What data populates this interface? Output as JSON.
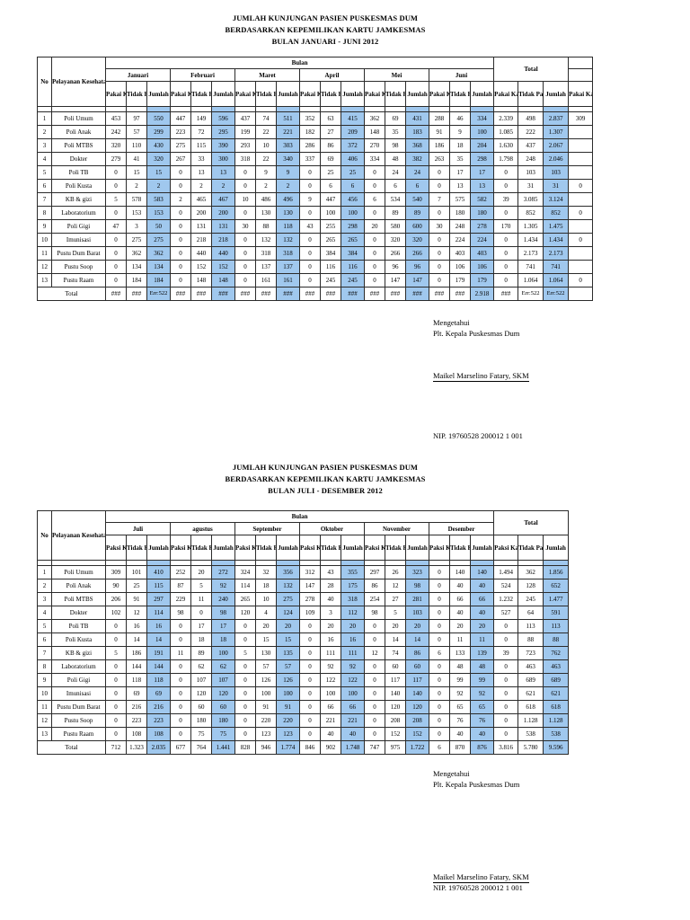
{
  "colors": {
    "highlight": "#A0C8EE",
    "border": "#2b2b2b"
  },
  "doc": {
    "title1": {
      "line1": "JUMLAH KUNJUNGAN PASIEN PUSKESMAS DUM",
      "line2": "BERDASARKAN KEPEMILIKAN KARTU JAMKESMAS",
      "line3": "BULAN JANUARI - JUNI 2012"
    },
    "title2": {
      "line1": "JUMLAH KUNJUNGAN PASIEN PUSKESMAS DUM",
      "line2": "BERDASARKAN KEPEMILIKAN KARTU JAMKESMAS",
      "line3": "BULAN JULI - DESEMBER 2012"
    },
    "sign1": {
      "l1": "Mengetahui",
      "l2": "Plt. Kepala Puskesmas Dum",
      "name": "Maikel Marselino Fatary, SKM",
      "nip": "NIP. 19760528 200012 1 001"
    },
    "sign2": {
      "l1": "Mengetahui",
      "l2": "Plt. Kepala Puskesmas Dum",
      "name": "Maikel Marselino Fatary, SKM",
      "nip": "NIP. 19760528 200012 1 001"
    }
  },
  "tables": [
    {
      "no_label": "No",
      "service_label": "Pelayanan Kesehatan",
      "bulan_label": "Bulan",
      "total_label": "Total",
      "months": [
        "Januari",
        "Februari",
        "Maret",
        "April",
        "Mei",
        "Juni"
      ],
      "sub": [
        "Pakai Kartu",
        "Tidak Pakai",
        "Jumlah"
      ],
      "total_sub": [
        "Pakai Kartu",
        "Tidak Pakai",
        "Jumlah"
      ],
      "trailing_label": "Pakai Kartu",
      "total_row_label": "Total",
      "rows": [
        {
          "no": "1",
          "name": "Poli Umum",
          "cells": [
            "453",
            "97",
            "550",
            "447",
            "149",
            "596",
            "437",
            "74",
            "511",
            "352",
            "63",
            "415",
            "362",
            "69",
            "431",
            "288",
            "46",
            "334",
            "2.339",
            "498",
            "2.837"
          ],
          "trailing": "309"
        },
        {
          "no": "2",
          "name": "Poli Anak",
          "cells": [
            "242",
            "57",
            "299",
            "223",
            "72",
            "295",
            "199",
            "22",
            "221",
            "182",
            "27",
            "209",
            "148",
            "35",
            "183",
            "91",
            "9",
            "100",
            "1.085",
            "222",
            "1.307"
          ],
          "trailing": ""
        },
        {
          "no": "3",
          "name": "Poli MTBS",
          "cells": [
            "320",
            "110",
            "430",
            "275",
            "115",
            "390",
            "293",
            "10",
            "303",
            "286",
            "86",
            "372",
            "270",
            "98",
            "368",
            "186",
            "18",
            "204",
            "1.630",
            "437",
            "2.067"
          ],
          "trailing": ""
        },
        {
          "no": "4",
          "name": "Dokter",
          "cells": [
            "279",
            "41",
            "320",
            "267",
            "33",
            "300",
            "318",
            "22",
            "340",
            "337",
            "69",
            "406",
            "334",
            "48",
            "382",
            "263",
            "35",
            "298",
            "1.798",
            "248",
            "2.046"
          ],
          "trailing": ""
        },
        {
          "no": "5",
          "name": "Poli TB",
          "cells": [
            "0",
            "15",
            "15",
            "0",
            "13",
            "13",
            "0",
            "9",
            "9",
            "0",
            "25",
            "25",
            "0",
            "24",
            "24",
            "0",
            "17",
            "17",
            "0",
            "103",
            "103"
          ],
          "trailing": ""
        },
        {
          "no": "6",
          "name": "Poli Kusta",
          "cells": [
            "0",
            "2",
            "2",
            "0",
            "2",
            "2",
            "0",
            "2",
            "2",
            "0",
            "6",
            "6",
            "0",
            "6",
            "6",
            "0",
            "13",
            "13",
            "0",
            "31",
            "31"
          ],
          "trailing": "0"
        },
        {
          "no": "7",
          "name": "KB & gizi",
          "cells": [
            "5",
            "578",
            "583",
            "2",
            "465",
            "467",
            "10",
            "486",
            "496",
            "9",
            "447",
            "456",
            "6",
            "534",
            "540",
            "7",
            "575",
            "582",
            "39",
            "3.085",
            "3.124"
          ],
          "trailing": ""
        },
        {
          "no": "8",
          "name": "Laboratorium",
          "cells": [
            "0",
            "153",
            "153",
            "0",
            "200",
            "200",
            "0",
            "130",
            "130",
            "0",
            "100",
            "100",
            "0",
            "89",
            "89",
            "0",
            "180",
            "180",
            "0",
            "852",
            "852"
          ],
          "trailing": "0"
        },
        {
          "no": "9",
          "name": "Poli Gigi",
          "cells": [
            "47",
            "3",
            "50",
            "0",
            "131",
            "131",
            "30",
            "88",
            "118",
            "43",
            "255",
            "298",
            "20",
            "580",
            "600",
            "30",
            "248",
            "278",
            "170",
            "1.305",
            "1.475"
          ],
          "trailing": ""
        },
        {
          "no": "10",
          "name": "Imunisasi",
          "cells": [
            "0",
            "275",
            "275",
            "0",
            "218",
            "218",
            "0",
            "132",
            "132",
            "0",
            "265",
            "265",
            "0",
            "320",
            "320",
            "0",
            "224",
            "224",
            "0",
            "1.434",
            "1.434"
          ],
          "trailing": "0"
        },
        {
          "no": "11",
          "name": "Pustu Dum Barat",
          "cells": [
            "0",
            "362",
            "362",
            "0",
            "440",
            "440",
            "0",
            "318",
            "318",
            "0",
            "384",
            "384",
            "0",
            "266",
            "266",
            "0",
            "403",
            "403",
            "0",
            "2.173",
            "2.173"
          ],
          "trailing": ""
        },
        {
          "no": "12",
          "name": "Pustu Soop",
          "cells": [
            "0",
            "134",
            "134",
            "0",
            "152",
            "152",
            "0",
            "137",
            "137",
            "0",
            "116",
            "116",
            "0",
            "96",
            "96",
            "0",
            "106",
            "106",
            "0",
            "741",
            "741"
          ],
          "trailing": ""
        },
        {
          "no": "13",
          "name": "Pustu Raam",
          "cells": [
            "0",
            "184",
            "184",
            "0",
            "148",
            "148",
            "0",
            "161",
            "161",
            "0",
            "245",
            "245",
            "0",
            "147",
            "147",
            "0",
            "179",
            "179",
            "0",
            "1.064",
            "1.064"
          ],
          "trailing": "0"
        }
      ],
      "total_row": {
        "cells": [
          "###",
          "###",
          "Err:522",
          "###",
          "###",
          "###",
          "###",
          "###",
          "###",
          "###",
          "###",
          "###",
          "###",
          "###",
          "###",
          "###",
          "###",
          "2.918",
          "###",
          "Err:522",
          "Err:522"
        ],
        "trailing": ""
      }
    },
    {
      "no_label": "No",
      "service_label": "Pelayanan Kesehatan",
      "bulan_label": "Bulan",
      "total_label": "Total",
      "months": [
        "Juli",
        "agustus",
        "September",
        "Oktober",
        "November",
        "Desember"
      ],
      "sub": [
        "Paksi Kartu",
        "Tidak Paksi",
        "Jumlah"
      ],
      "total_sub": [
        "Paksi Kartu",
        "Tidak Paksi",
        "Jumlah"
      ],
      "total_row_label": "Total",
      "rows": [
        {
          "no": "1",
          "name": "Poli Umum",
          "cells": [
            "309",
            "101",
            "410",
            "252",
            "20",
            "272",
            "324",
            "32",
            "356",
            "312",
            "43",
            "355",
            "297",
            "26",
            "323",
            "0",
            "140",
            "140",
            "1.494",
            "362",
            "1.856"
          ]
        },
        {
          "no": "2",
          "name": "Poli Anak",
          "cells": [
            "90",
            "25",
            "115",
            "87",
            "5",
            "92",
            "114",
            "18",
            "132",
            "147",
            "28",
            "175",
            "86",
            "12",
            "98",
            "0",
            "40",
            "40",
            "524",
            "128",
            "652"
          ]
        },
        {
          "no": "3",
          "name": "Poli MTBS",
          "cells": [
            "206",
            "91",
            "297",
            "229",
            "11",
            "240",
            "265",
            "10",
            "275",
            "278",
            "40",
            "318",
            "254",
            "27",
            "281",
            "0",
            "66",
            "66",
            "1.232",
            "245",
            "1.477"
          ]
        },
        {
          "no": "4",
          "name": "Dokter",
          "cells": [
            "102",
            "12",
            "114",
            "98",
            "0",
            "98",
            "120",
            "4",
            "124",
            "109",
            "3",
            "112",
            "98",
            "5",
            "103",
            "0",
            "40",
            "40",
            "527",
            "64",
            "591"
          ]
        },
        {
          "no": "5",
          "name": "Poli TB",
          "cells": [
            "0",
            "16",
            "16",
            "0",
            "17",
            "17",
            "0",
            "20",
            "20",
            "0",
            "20",
            "20",
            "0",
            "20",
            "20",
            "0",
            "20",
            "20",
            "0",
            "113",
            "113"
          ]
        },
        {
          "no": "6",
          "name": "Poli Kusta",
          "cells": [
            "0",
            "14",
            "14",
            "0",
            "18",
            "18",
            "0",
            "15",
            "15",
            "0",
            "16",
            "16",
            "0",
            "14",
            "14",
            "0",
            "11",
            "11",
            "0",
            "88",
            "88"
          ]
        },
        {
          "no": "7",
          "name": "KB & gizi",
          "cells": [
            "5",
            "186",
            "191",
            "11",
            "89",
            "100",
            "5",
            "130",
            "135",
            "0",
            "111",
            "111",
            "12",
            "74",
            "86",
            "6",
            "133",
            "139",
            "39",
            "723",
            "762"
          ]
        },
        {
          "no": "8",
          "name": "Laboratorium",
          "cells": [
            "0",
            "144",
            "144",
            "0",
            "62",
            "62",
            "0",
            "57",
            "57",
            "0",
            "92",
            "92",
            "0",
            "60",
            "60",
            "0",
            "48",
            "48",
            "0",
            "463",
            "463"
          ]
        },
        {
          "no": "9",
          "name": "Poli Gigi",
          "cells": [
            "0",
            "118",
            "118",
            "0",
            "107",
            "107",
            "0",
            "126",
            "126",
            "0",
            "122",
            "122",
            "0",
            "117",
            "117",
            "0",
            "99",
            "99",
            "0",
            "689",
            "689"
          ]
        },
        {
          "no": "10",
          "name": "Imunisasi",
          "cells": [
            "0",
            "69",
            "69",
            "0",
            "120",
            "120",
            "0",
            "100",
            "100",
            "0",
            "100",
            "100",
            "0",
            "140",
            "140",
            "0",
            "92",
            "92",
            "0",
            "621",
            "621"
          ]
        },
        {
          "no": "11",
          "name": "Pustu Dum Barat",
          "cells": [
            "0",
            "216",
            "216",
            "0",
            "60",
            "60",
            "0",
            "91",
            "91",
            "0",
            "66",
            "66",
            "0",
            "120",
            "120",
            "0",
            "65",
            "65",
            "0",
            "618",
            "618"
          ]
        },
        {
          "no": "12",
          "name": "Pustu Soop",
          "cells": [
            "0",
            "223",
            "223",
            "0",
            "180",
            "180",
            "0",
            "220",
            "220",
            "0",
            "221",
            "221",
            "0",
            "208",
            "208",
            "0",
            "76",
            "76",
            "0",
            "1.128",
            "1.128"
          ]
        },
        {
          "no": "13",
          "name": "Pustu Raam",
          "cells": [
            "0",
            "108",
            "108",
            "0",
            "75",
            "75",
            "0",
            "123",
            "123",
            "0",
            "40",
            "40",
            "0",
            "152",
            "152",
            "0",
            "40",
            "40",
            "0",
            "538",
            "538"
          ]
        }
      ],
      "total_row": {
        "cells": [
          "712",
          "1.323",
          "2.035",
          "677",
          "764",
          "1.441",
          "828",
          "946",
          "1.774",
          "846",
          "902",
          "1.748",
          "747",
          "975",
          "1.722",
          "6",
          "870",
          "876",
          "3.816",
          "5.780",
          "9.596"
        ]
      }
    }
  ]
}
